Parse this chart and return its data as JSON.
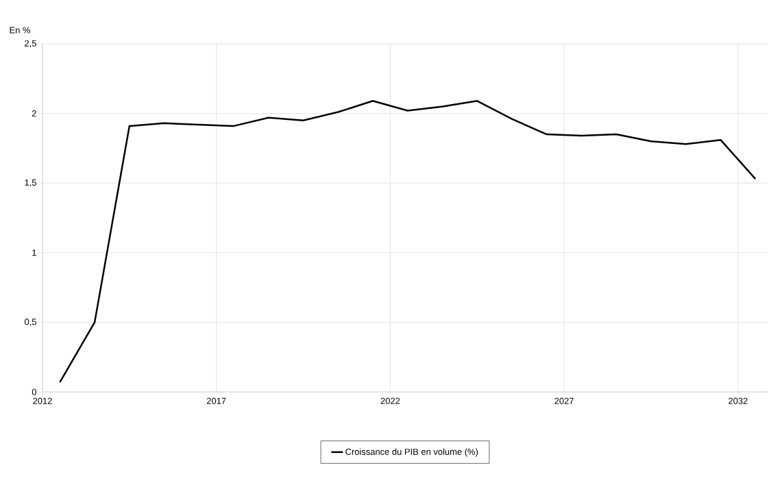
{
  "chart_data": {
    "type": "line",
    "ylabel": "En %",
    "x": [
      2012.5,
      2013.5,
      2014.5,
      2015.5,
      2016.5,
      2017.5,
      2018.5,
      2019.5,
      2020.5,
      2021.5,
      2022.5,
      2023.5,
      2024.5,
      2025.5,
      2026.5,
      2027.5,
      2028.5,
      2029.5,
      2030.5,
      2031.5,
      2032.5
    ],
    "series": [
      {
        "name": "Croissance du PIB en volume (%)",
        "color": "#000000",
        "values": [
          0.07,
          0.5,
          1.91,
          1.93,
          1.92,
          1.91,
          1.97,
          1.95,
          2.01,
          2.09,
          2.02,
          2.05,
          2.09,
          1.96,
          1.85,
          1.84,
          1.85,
          1.8,
          1.78,
          1.81,
          1.53
        ]
      }
    ],
    "xlim": [
      2012,
      2032.85
    ],
    "ylim": [
      0,
      2.5
    ],
    "xticks": [
      2012,
      2017,
      2022,
      2027,
      2032
    ],
    "yticks": [
      0,
      {
        "value": 0.5,
        "label": "0,5"
      },
      1,
      {
        "value": 1.5,
        "label": "1,5"
      },
      2,
      {
        "value": 2.5,
        "label": "2,5"
      }
    ],
    "grid": true,
    "legend": "bottom"
  }
}
